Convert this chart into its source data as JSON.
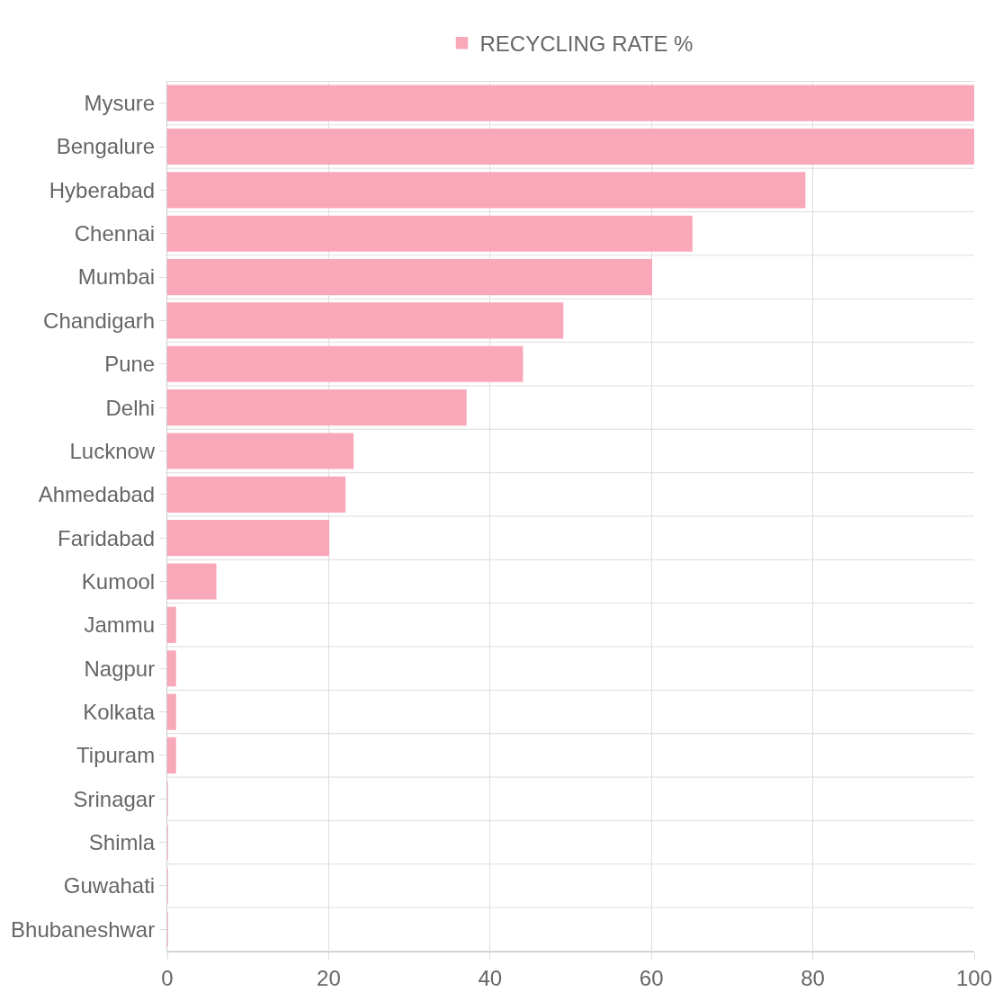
{
  "chart_data": {
    "type": "bar",
    "orientation": "horizontal",
    "categories": [
      "Mysure",
      "Bengalure",
      "Hyberabad",
      "Chennai",
      "Mumbai",
      "Chandigarh",
      "Pune",
      "Delhi",
      "Lucknow",
      "Ahmedabad",
      "Faridabad",
      "Kumool",
      "Jammu",
      "Nagpur",
      "Kolkata",
      "Tipuram",
      "Srinagar",
      "Shimla",
      "Guwahati",
      "Bhubaneshwar"
    ],
    "series": [
      {
        "name": "RECYCLING RATE %",
        "color": "#f9a8b9",
        "values": [
          100,
          100,
          79,
          65,
          60,
          49,
          44,
          37,
          23,
          22,
          20,
          6,
          1,
          1,
          1,
          1,
          0,
          0,
          0,
          0
        ]
      }
    ],
    "xlim": [
      0,
      100
    ],
    "xticks": [
      0,
      20,
      40,
      60,
      80,
      100
    ],
    "grid": true,
    "legend": "top"
  }
}
